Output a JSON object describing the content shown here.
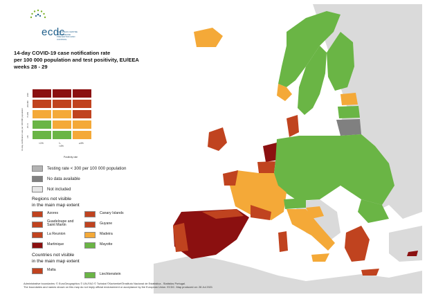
{
  "logo": {
    "name": "ecdc",
    "subtitle": "EUROPEAN CENTRE FOR DISEASE PREVENTION AND CONTROL"
  },
  "title": [
    "14-day COVID-19 case notification rate",
    "per 100 000 population and test positivity, EU/EEA",
    "weeks 28 - 29"
  ],
  "matrix": {
    "y_axis_label": "14-day notification rate per 100 000 population",
    "x_axis_label": "Positivity rate",
    "x_ticks": [
      "<1%",
      "1-<4%",
      "≥4%"
    ],
    "y_ticks": [
      "≥500",
      "200-499",
      "75-199",
      "25-74",
      "<25"
    ],
    "colors": [
      [
        "#8b1010",
        "#8b1010",
        "#8b1010"
      ],
      [
        "#c0431f",
        "#c0431f",
        "#c0431f"
      ],
      [
        "#f4a938",
        "#f4a938",
        "#c0431f"
      ],
      [
        "#6ab545",
        "#f4a938",
        "#f4a938"
      ],
      [
        "#6ab545",
        "#6ab545",
        "#f4a938"
      ]
    ]
  },
  "legend": [
    {
      "label": "Testing rate < 300 per 100 000 population",
      "color": "#b3b3b3"
    },
    {
      "label": "No data available",
      "color": "#808080"
    },
    {
      "label": "Not included",
      "color": "#e6e6e6"
    }
  ],
  "regions_title": [
    "Regions not visible",
    "in the main map extent"
  ],
  "regions": [
    {
      "label": "Azores",
      "color": "#c0431f"
    },
    {
      "label": "Canary Islands",
      "color": "#c0431f"
    },
    {
      "label": "Guadeloupe and Saint Martin",
      "color": "#c0431f"
    },
    {
      "label": "Guyane",
      "color": "#c0431f"
    },
    {
      "label": "La Reunion",
      "color": "#c0431f"
    },
    {
      "label": "Madeira",
      "color": "#f4a938"
    },
    {
      "label": "Martinique",
      "color": "#8b1010"
    },
    {
      "label": "Mayotte",
      "color": "#6ab545"
    }
  ],
  "countries_title": [
    "Countries not visible",
    "in the main map extent"
  ],
  "countries": [
    {
      "label": "Malta",
      "color": "#c0431f"
    },
    {
      "label": "Liechtenstein",
      "color": "#6ab545"
    }
  ],
  "footer": [
    "Administrative boundaries: © EuroGeographics © UN-FAO © Turkstat ©Kartverket©Instituto Nacional de Estatistica - Statistics Portugal.",
    "The boundaries and names shown on this map do not imply official endorsement or acceptance by the European Union. ECDC. Map produced on: 28 Jul 2021"
  ],
  "map_colors": {
    "sea": "#ffffff",
    "land_other": "#dadada",
    "green": "#6ab545",
    "yellow": "#f4a938",
    "red": "#c0431f",
    "darkred": "#8b1010",
    "grey": "#808080"
  }
}
